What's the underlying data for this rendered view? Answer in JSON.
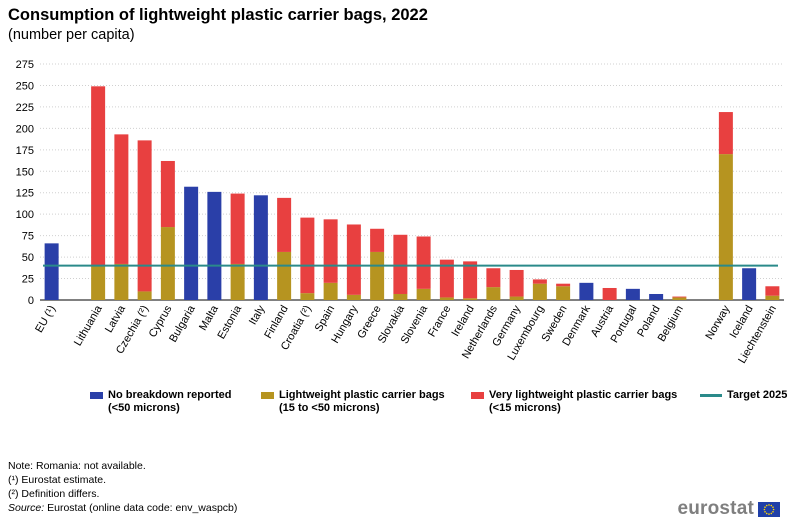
{
  "title": "Consumption of lightweight plastic carrier bags, 2022",
  "subtitle": "(number per capita)",
  "chart_data": {
    "type": "bar",
    "stacked": true,
    "ylim": [
      0,
      275
    ],
    "yticks": [
      0,
      25,
      50,
      75,
      100,
      125,
      150,
      175,
      200,
      225,
      250,
      275
    ],
    "grid": true,
    "categories": [
      "EU (¹)",
      "",
      "Lithuania",
      "Latvia",
      "Czechia (²)",
      "Cyprus",
      "Bulgaria",
      "Malta",
      "Estonia",
      "Italy",
      "Finland",
      "Croatia (²)",
      "Spain",
      "Hungary",
      "Greece",
      "Slovakia",
      "Slovenia",
      "France",
      "Ireland",
      "Netherlands",
      "Germany",
      "Luxembourg",
      "Sweden",
      "Denmark",
      "Austria",
      "Portugal",
      "Poland",
      "Belgium",
      "",
      "Norway",
      "Iceland",
      "Liechtenstein"
    ],
    "series": [
      {
        "name": "No breakdown reported\n(<50 microns)",
        "color": "#2a3fa8",
        "values": [
          66,
          null,
          0,
          0,
          0,
          0,
          132,
          126,
          0,
          122,
          0,
          0,
          0,
          0,
          0,
          0,
          0,
          0,
          0,
          0,
          0,
          0,
          0,
          20,
          0,
          13,
          7,
          0,
          null,
          0,
          37,
          0
        ]
      },
      {
        "name": "Lightweight plastic carrier bags\n(15 to <50 microns)",
        "color": "#b69420",
        "values": [
          0,
          null,
          40,
          42,
          10,
          85,
          0,
          0,
          42,
          0,
          56,
          8,
          20,
          6,
          56,
          7,
          13,
          3,
          2,
          15,
          4,
          19,
          16,
          0,
          0,
          0,
          0,
          3,
          null,
          170,
          0,
          5
        ]
      },
      {
        "name": "Very lightweight plastic carrier bags\n(<15 microns)",
        "color": "#e84040",
        "values": [
          0,
          null,
          209,
          151,
          176,
          77,
          0,
          0,
          82,
          0,
          63,
          88,
          74,
          82,
          27,
          69,
          61,
          44,
          43,
          22,
          31,
          5,
          3,
          0,
          14,
          0,
          0,
          1,
          null,
          49,
          0,
          11
        ]
      }
    ],
    "target": {
      "name": "Target 2025",
      "value": 40,
      "color": "#2a8a8a"
    }
  },
  "legend": {
    "items": [
      {
        "line1": "No breakdown reported",
        "line2": "(<50 microns)",
        "color": "#2a3fa8"
      },
      {
        "line1": "Lightweight plastic carrier bags",
        "line2": "(15 to <50 microns)",
        "color": "#b69420"
      },
      {
        "line1": "Very lightweight plastic carrier bags",
        "line2": "(<15 microns)",
        "color": "#e84040"
      },
      {
        "line1": "Target 2025",
        "line2": "",
        "color": "#2a8a8a"
      }
    ]
  },
  "notes": {
    "line1": "Note: Romania:  not available.",
    "line2": "(¹) Eurostat estimate.",
    "line3": "(²) Definition differs.",
    "source_label": "Source:",
    "source_text": " Eurostat (online data code: env_waspcb)"
  },
  "logo": {
    "text": "eurostat",
    "flag_color": "#1f3fa8"
  }
}
